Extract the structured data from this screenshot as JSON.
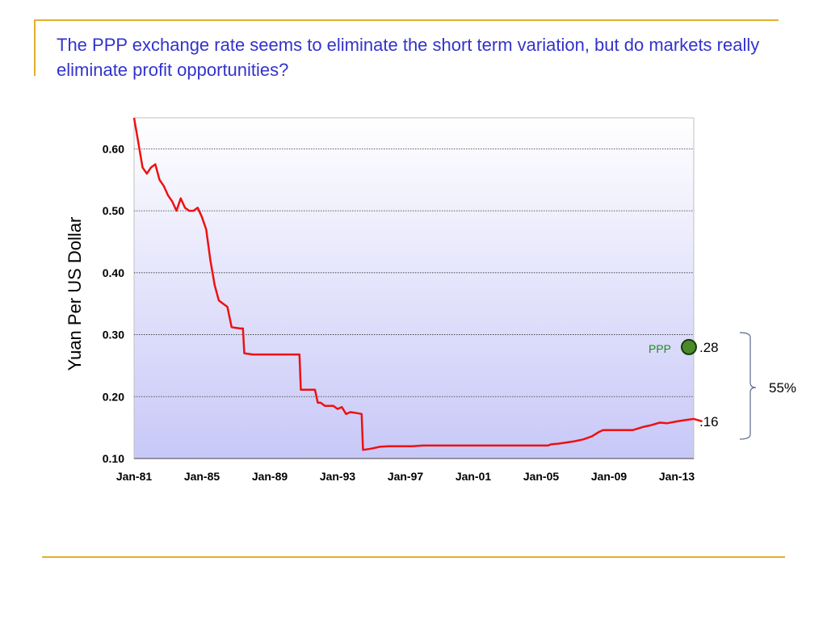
{
  "slide": {
    "title": "The PPP exchange rate seems to eliminate the short term variation, but do markets really eliminate profit opportunities?"
  },
  "colors": {
    "accent_rule": "#e0b030",
    "title_text": "#3333cc",
    "series_line": "#ee1111",
    "ppp_marker": "#4a8a2a",
    "ppp_label": "#228822",
    "plot_bg_top": "#ffffff",
    "plot_bg_bottom": "#c8c8f8"
  },
  "chart_data": {
    "type": "line",
    "title": "",
    "xlabel": "",
    "ylabel": "Yuan Per US Dollar",
    "ylim": [
      0.1,
      0.65
    ],
    "xlim": [
      "1981-01",
      "2014-01"
    ],
    "yticks": [
      "0.10",
      "0.20",
      "0.30",
      "0.40",
      "0.50",
      "0.60"
    ],
    "xticks": [
      "Jan-81",
      "Jan-85",
      "Jan-89",
      "Jan-93",
      "Jan-97",
      "Jan-01",
      "Jan-05",
      "Jan-09",
      "Jan-13"
    ],
    "grid": "horizontal dotted",
    "series": [
      {
        "points": [
          [
            "1981-01",
            0.65
          ],
          [
            "1981-04",
            0.61
          ],
          [
            "1981-07",
            0.57
          ],
          [
            "1981-10",
            0.56
          ],
          [
            "1982-01",
            0.57
          ],
          [
            "1982-04",
            0.575
          ],
          [
            "1982-07",
            0.55
          ],
          [
            "1982-10",
            0.54
          ],
          [
            "1983-01",
            0.525
          ],
          [
            "1983-04",
            0.515
          ],
          [
            "1983-07",
            0.5
          ],
          [
            "1983-10",
            0.52
          ],
          [
            "1984-01",
            0.505
          ],
          [
            "1984-04",
            0.5
          ],
          [
            "1984-07",
            0.5
          ],
          [
            "1984-10",
            0.505
          ],
          [
            "1985-01",
            0.49
          ],
          [
            "1985-04",
            0.47
          ],
          [
            "1985-07",
            0.42
          ],
          [
            "1985-10",
            0.38
          ],
          [
            "1986-01",
            0.355
          ],
          [
            "1986-04",
            0.35
          ],
          [
            "1986-07",
            0.345
          ],
          [
            "1986-10",
            0.312
          ],
          [
            "1987-01",
            0.311
          ],
          [
            "1987-04",
            0.31
          ],
          [
            "1987-06",
            0.31
          ],
          [
            "1987-07",
            0.27
          ],
          [
            "1988-01",
            0.268
          ],
          [
            "1990-10",
            0.268
          ],
          [
            "1990-11",
            0.211
          ],
          [
            "1991-09",
            0.211
          ],
          [
            "1991-11",
            0.19
          ],
          [
            "1992-01",
            0.19
          ],
          [
            "1992-04",
            0.185
          ],
          [
            "1992-10",
            0.185
          ],
          [
            "1993-01",
            0.18
          ],
          [
            "1993-04",
            0.183
          ],
          [
            "1993-07",
            0.172
          ],
          [
            "1993-10",
            0.175
          ],
          [
            "1994-01",
            0.174
          ],
          [
            "1994-06",
            0.172
          ],
          [
            "1994-07",
            0.114
          ],
          [
            "1995-01",
            0.116
          ],
          [
            "1995-07",
            0.119
          ],
          [
            "1996-01",
            0.12
          ],
          [
            "1996-06",
            0.12
          ],
          [
            "1997-06",
            0.12
          ],
          [
            "1998-01",
            0.121
          ],
          [
            "2005-06",
            0.121
          ],
          [
            "2005-08",
            0.123
          ],
          [
            "2006-01",
            0.124
          ],
          [
            "2006-07",
            0.126
          ],
          [
            "2007-01",
            0.128
          ],
          [
            "2007-07",
            0.131
          ],
          [
            "2008-01",
            0.136
          ],
          [
            "2008-06",
            0.143
          ],
          [
            "2008-09",
            0.146
          ],
          [
            "2010-06",
            0.146
          ],
          [
            "2011-01",
            0.151
          ],
          [
            "2011-07",
            0.154
          ],
          [
            "2012-01",
            0.158
          ],
          [
            "2012-06",
            0.157
          ],
          [
            "2013-01",
            0.16
          ],
          [
            "2013-07",
            0.162
          ],
          [
            "2014-01",
            0.164
          ],
          [
            "2014-04",
            0.162
          ],
          [
            "2014-07",
            0.16
          ]
        ]
      }
    ],
    "annotations": {
      "ppp_label": "PPP",
      "ppp_value": 0.28,
      "ppp_value_label": ".28",
      "market_value": 0.16,
      "market_value_label": ".16",
      "gap_label": "55%"
    }
  }
}
